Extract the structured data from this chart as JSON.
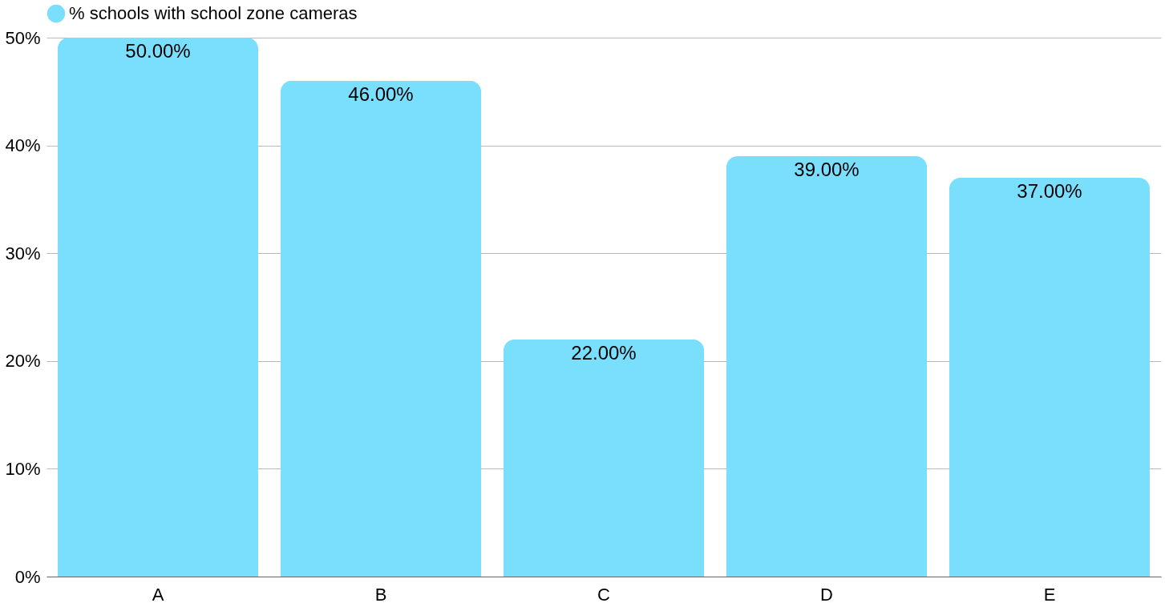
{
  "chart_data": {
    "type": "bar",
    "categories": [
      "A",
      "B",
      "C",
      "D",
      "E"
    ],
    "series": [
      {
        "name": "% schools with school zone cameras",
        "color": "#7adffc",
        "values": [
          50,
          46,
          22,
          39,
          37
        ]
      }
    ],
    "value_labels": [
      "50.00%",
      "46.00%",
      "22.00%",
      "39.00%",
      "37.00%"
    ],
    "ylim": [
      0,
      50
    ],
    "yticks": [
      {
        "value": 0,
        "label": "0%"
      },
      {
        "value": 10,
        "label": "10%"
      },
      {
        "value": 20,
        "label": "20%"
      },
      {
        "value": 30,
        "label": "30%"
      },
      {
        "value": 40,
        "label": "40%"
      },
      {
        "value": 50,
        "label": "50%"
      }
    ],
    "grid": "y",
    "legend": "top"
  }
}
